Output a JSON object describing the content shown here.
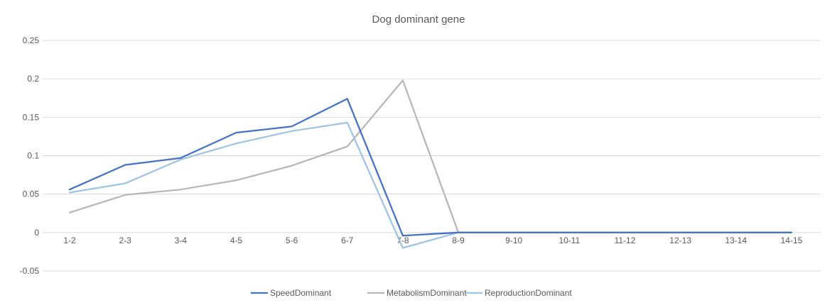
{
  "chart_data": {
    "type": "line",
    "title": "Dog dominant gene",
    "xlabel": "",
    "ylabel": "",
    "categories": [
      "1-2",
      "2-3",
      "3-4",
      "4-5",
      "5-6",
      "6-7",
      "7-8",
      "8-9",
      "9-10",
      "10-11",
      "11-12",
      "12-13",
      "13-14",
      "14-15"
    ],
    "ylim": [
      -0.05,
      0.25
    ],
    "yticks": [
      -0.05,
      0,
      0.05,
      0.1,
      0.15,
      0.2,
      0.25
    ],
    "ytick_labels": [
      "-0.05",
      "0",
      "0.05",
      "0.1",
      "0.15",
      "0.2",
      "0.25"
    ],
    "grid": true,
    "legend_position": "bottom",
    "series": [
      {
        "name": "SpeedDominant",
        "color": "#4472c4",
        "values": [
          0.056,
          0.088,
          0.097,
          0.13,
          0.138,
          0.174,
          -0.004,
          0,
          0,
          0,
          0,
          0,
          0,
          0
        ]
      },
      {
        "name": "MetabolismDominant",
        "color": "#b7b7b7",
        "values": [
          0.026,
          0.049,
          0.056,
          0.068,
          0.087,
          0.112,
          0.198,
          0,
          0,
          0,
          0,
          0,
          0,
          0
        ]
      },
      {
        "name": "ReproductionDominant",
        "color": "#9dc3e6",
        "values": [
          0.052,
          0.064,
          0.095,
          0.116,
          0.132,
          0.143,
          -0.02,
          0,
          0,
          0,
          0,
          0,
          0,
          0
        ]
      }
    ]
  }
}
